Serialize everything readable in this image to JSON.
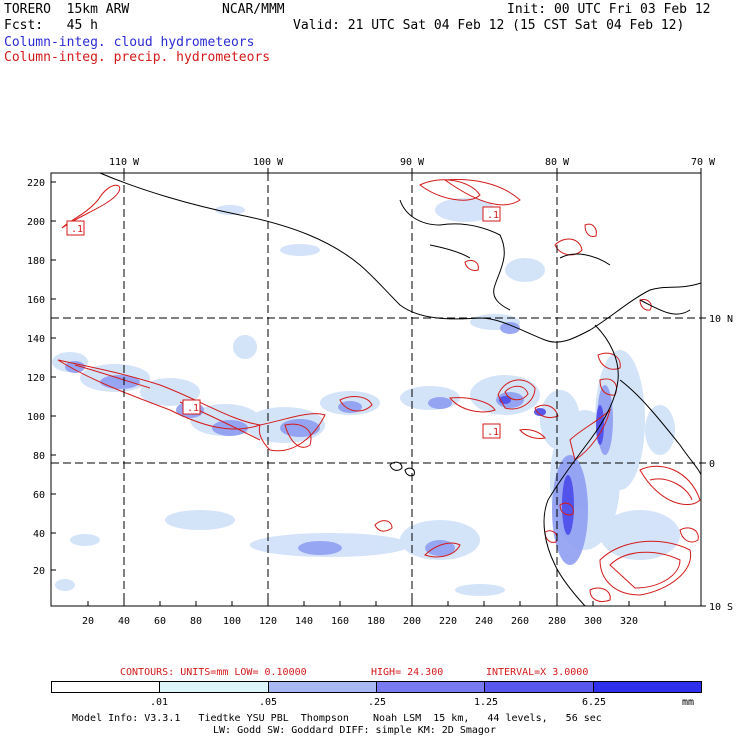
{
  "header": {
    "model": "TORERO  15km ARW",
    "org": "NCAR/MMM",
    "init": "Init: 00 UTC Fri 03 Feb 12",
    "fcst": "Fcst:   45 h",
    "valid": "Valid: 21 UTC Sat 04 Feb 12 (15 CST Sat 04 Feb 12)",
    "field_cloud": "Column-integ. cloud hydrometeors",
    "field_precip": "Column-integ. precip. hydrometeors"
  },
  "map": {
    "x_ticks": [
      "20",
      "40",
      "60",
      "80",
      "100",
      "120",
      "140",
      "160",
      "180",
      "200",
      "220",
      "240",
      "260",
      "280",
      "300",
      "320"
    ],
    "y_ticks": [
      "20",
      "40",
      "60",
      "80",
      "100",
      "120",
      "140",
      "160",
      "180",
      "200",
      "220"
    ],
    "lon_labels": [
      "110 W",
      "100 W",
      "90 W",
      "80 W",
      "70 W"
    ],
    "lat_labels": [
      "10 N",
      "0",
      "10 S"
    ],
    "contour_labels": [
      ".1",
      ".1",
      ".1",
      ".1"
    ]
  },
  "contours_info": {
    "units_text": "CONTOURS:  UNITS=mm  LOW= 0.10000",
    "high_text": "HIGH=  24.300",
    "interval_text": "INTERVAL=X  3.0000"
  },
  "colorbar": {
    "colors": [
      "#ffffff",
      "#dcf5fb",
      "#a8b8f3",
      "#7a7af0",
      "#5858ee",
      "#2f2fee"
    ],
    "labels": [
      ".01",
      ".05",
      ".25",
      "1.25",
      "6.25"
    ],
    "units": "mm"
  },
  "footer": {
    "line1": "Model Info: V3.3.1   Tiedtke YSU PBL  Thompson    Noah LSM  15 km,   44 levels,   56 sec",
    "line2": "LW: Godd SW: Goddard DIFF: simple KM: 2D Smagor"
  }
}
